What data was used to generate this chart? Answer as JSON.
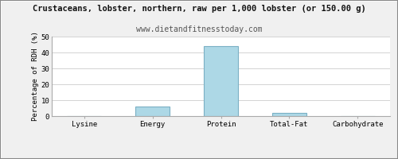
{
  "title": "Crustaceans, lobster, northern, raw per 1,000 lobster (or 150.00 g)",
  "subtitle": "www.dietandfitnesstoday.com",
  "categories": [
    "Lysine",
    "Energy",
    "Protein",
    "Total-Fat",
    "Carbohydrate"
  ],
  "values": [
    0.0,
    6.0,
    44.0,
    2.0,
    0.0
  ],
  "bar_color": "#add8e6",
  "bar_edge_color": "#7ab0c4",
  "ylabel": "Percentage of RDH (%)",
  "ylim": [
    0,
    50
  ],
  "yticks": [
    0,
    10,
    20,
    30,
    40,
    50
  ],
  "background_color": "#f0f0f0",
  "plot_bg_color": "#ffffff",
  "grid_color": "#cccccc",
  "title_fontsize": 7.5,
  "subtitle_fontsize": 7.0,
  "axis_label_fontsize": 6.5,
  "tick_fontsize": 6.5,
  "title_font": "monospace",
  "body_font": "monospace",
  "border_color": "#aaaaaa"
}
